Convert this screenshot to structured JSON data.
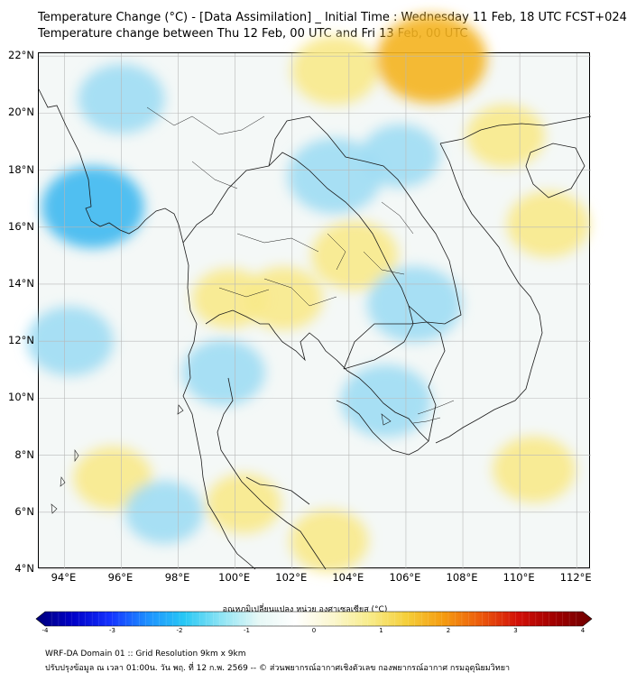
{
  "header": {
    "title_line1": "Temperature Change (°C) - [Data Assimilation] _ Initial Time : Wednesday 11 Feb, 18 UTC FCST+024",
    "title_line2": "Temperature change between Thu 12 Feb, 00 UTC and Fri 13 Feb, 00 UTC"
  },
  "axes": {
    "lat_labels": [
      "22°N",
      "20°N",
      "18°N",
      "16°N",
      "14°N",
      "12°N",
      "10°N",
      "8°N",
      "6°N",
      "4°N"
    ],
    "lon_labels": [
      "94°E",
      "96°E",
      "98°E",
      "100°E",
      "102°E",
      "104°E",
      "106°E",
      "108°E",
      "110°E",
      "112°E"
    ],
    "lat_range": [
      4,
      22.1
    ],
    "lon_range": [
      93.1,
      112.5
    ]
  },
  "colorbar": {
    "title": "อุณหภูมิเปลี่ยนแปลง หน่วย องศาเซลเซียส (°C)",
    "ticks": [
      "-4",
      "-3",
      "-2",
      "-1",
      "0",
      "1",
      "2",
      "3",
      "4"
    ],
    "range": [
      -4,
      4
    ],
    "colors": [
      "#00007a",
      "#0000c8",
      "#1432ff",
      "#1e90ff",
      "#28c8f5",
      "#8ee4f4",
      "#e6f8f6",
      "#ffffff",
      "#fbf7cf",
      "#f8ec8a",
      "#f5cf3a",
      "#f59b10",
      "#ec5a0c",
      "#d21008",
      "#a00000",
      "#6e0000"
    ]
  },
  "footer": {
    "line1": "WRF-DA Domain 01 :: Grid Resolution 9km x 9km",
    "line2": "ปรับปรุงข้อมูล ณ เวลา 01:00น. วัน พฤ. ที่ 12 ก.พ. 2569 -- © ส่วนพยากรณ์อากาศเชิงตัวเลข กองพยากรณ์อากาศ กรมอุตุนิยมวิทยา"
  },
  "field_features": [
    {
      "kind": "warm",
      "value": 1.6,
      "lat": 21.9,
      "lon": 106.9
    },
    {
      "kind": "warm",
      "value": 1.0,
      "lat": 21.5,
      "lon": 103.5
    },
    {
      "kind": "warm",
      "value": 0.8,
      "lat": 19.2,
      "lon": 109.5
    },
    {
      "kind": "warm",
      "value": 0.9,
      "lat": 16.1,
      "lon": 111.0
    },
    {
      "kind": "warm",
      "value": 1.0,
      "lat": 15.0,
      "lon": 104.2
    },
    {
      "kind": "warm",
      "value": 0.8,
      "lat": 13.5,
      "lon": 101.7
    },
    {
      "kind": "warm",
      "value": 0.7,
      "lat": 13.5,
      "lon": 99.8
    },
    {
      "kind": "warm",
      "value": 0.8,
      "lat": 7.2,
      "lon": 95.7
    },
    {
      "kind": "warm",
      "value": 0.9,
      "lat": 7.5,
      "lon": 110.5
    },
    {
      "kind": "warm",
      "value": 0.8,
      "lat": 5.0,
      "lon": 103.3
    },
    {
      "kind": "warm",
      "value": 0.7,
      "lat": 6.3,
      "lon": 100.3
    },
    {
      "kind": "cold",
      "value": -1.4,
      "lat": 16.7,
      "lon": 95.0
    },
    {
      "kind": "cold",
      "value": -1.0,
      "lat": 20.5,
      "lon": 96.0
    },
    {
      "kind": "cold",
      "value": -1.2,
      "lat": 17.8,
      "lon": 103.5
    },
    {
      "kind": "cold",
      "value": -1.2,
      "lat": 13.3,
      "lon": 106.3
    },
    {
      "kind": "cold",
      "value": -1.0,
      "lat": 12.0,
      "lon": 94.2
    },
    {
      "kind": "cold",
      "value": -1.1,
      "lat": 9.9,
      "lon": 105.3
    },
    {
      "kind": "cold",
      "value": -0.9,
      "lat": 10.9,
      "lon": 99.6
    },
    {
      "kind": "cold",
      "value": -0.8,
      "lat": 6.0,
      "lon": 97.5
    },
    {
      "kind": "cold",
      "value": -0.8,
      "lat": 18.5,
      "lon": 105.8
    }
  ],
  "colors": {
    "frame": "#000000",
    "grid": "#b8b8b8",
    "coast": "#1a1a1a",
    "background_field": "#f4f8f7"
  }
}
